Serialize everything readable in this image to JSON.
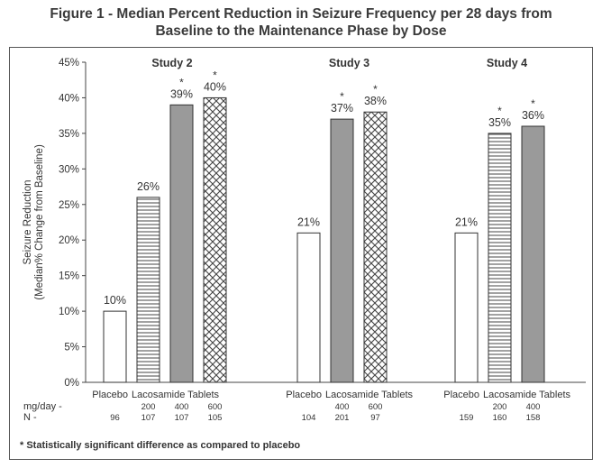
{
  "title_line1": "Figure 1 - Median Percent Reduction in Seizure Frequency per 28 days from",
  "title_line2": "Baseline to the Maintenance Phase by Dose",
  "footnote": "* Statistically significant difference as compared to placebo",
  "chart_data": {
    "type": "bar",
    "ylabel_line1": "Seizure Reduction",
    "ylabel_line2": "(Median% Change from Baseline)",
    "ylim": [
      0,
      45
    ],
    "yticks": [
      "0%",
      "5%",
      "10%",
      "15%",
      "20%",
      "25%",
      "30%",
      "35%",
      "40%",
      "45%"
    ],
    "row_labels": {
      "dose": "mg/day -",
      "n": "N -"
    },
    "significance_marker": "*",
    "groups": [
      {
        "name": "Study 2",
        "placebo_label": "Placebo",
        "drug_label": "Lacosamide Tablets",
        "bars": [
          {
            "value": 10,
            "label": "10%",
            "dose": "",
            "n": "96",
            "significant": false,
            "pattern": "white"
          },
          {
            "value": 26,
            "label": "26%",
            "dose": "200",
            "n": "107",
            "significant": false,
            "pattern": "hstripes"
          },
          {
            "value": 39,
            "label": "39%",
            "dose": "400",
            "n": "107",
            "significant": true,
            "pattern": "gray"
          },
          {
            "value": 40,
            "label": "40%",
            "dose": "600",
            "n": "105",
            "significant": true,
            "pattern": "crosshatch"
          }
        ]
      },
      {
        "name": "Study 3",
        "placebo_label": "Placebo",
        "drug_label": "Lacosamide Tablets",
        "bars": [
          {
            "value": 21,
            "label": "21%",
            "dose": "",
            "n": "104",
            "significant": false,
            "pattern": "white"
          },
          {
            "value": 37,
            "label": "37%",
            "dose": "400",
            "n": "201",
            "significant": true,
            "pattern": "gray"
          },
          {
            "value": 38,
            "label": "38%",
            "dose": "600",
            "n": "97",
            "significant": true,
            "pattern": "crosshatch"
          }
        ]
      },
      {
        "name": "Study 4",
        "placebo_label": "Placebo",
        "drug_label": "Lacosamide Tablets",
        "bars": [
          {
            "value": 21,
            "label": "21%",
            "dose": "",
            "n": "159",
            "significant": false,
            "pattern": "white"
          },
          {
            "value": 35,
            "label": "35%",
            "dose": "200",
            "n": "160",
            "significant": true,
            "pattern": "hstripes"
          },
          {
            "value": 36,
            "label": "36%",
            "dose": "400",
            "n": "158",
            "significant": true,
            "pattern": "gray"
          }
        ]
      }
    ],
    "colors": {
      "gray_fill": "#9a9a9a",
      "outline": "#333333",
      "text": "#333333"
    }
  }
}
